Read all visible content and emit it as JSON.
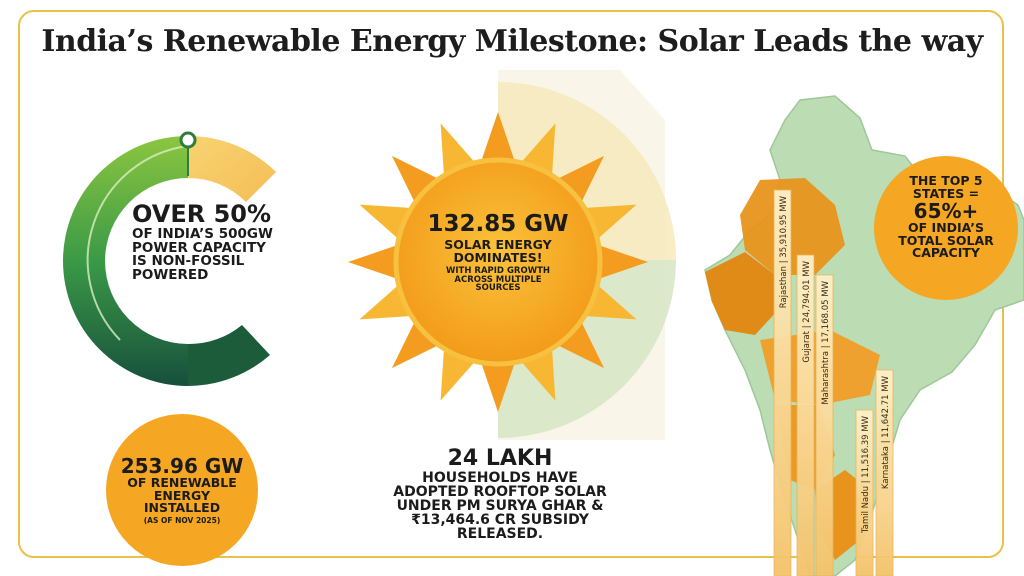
{
  "title": "India’s Renewable Energy Milestone: Solar Leads the way",
  "gauge": {
    "headline": "OVER 50%",
    "line1": "OF INDIA’S 500GW",
    "line2": "POWER CAPACITY",
    "line3": "IS NON-FOSSIL",
    "line4": "POWERED",
    "fraction": 0.5
  },
  "sun": {
    "headline": "132.85 GW",
    "line1": "SOLAR ENERGY",
    "line2": "DOMINATES!",
    "line3": "WITH RAPID GROWTH",
    "line4": "ACROSS MULTIPLE",
    "line5": "SOURCES"
  },
  "renewable": {
    "headline": "253.96 GW",
    "line1": "OF RENEWABLE",
    "line2": "ENERGY",
    "line3": "INSTALLED",
    "note": "(AS OF NOV 2025)"
  },
  "rooftop": {
    "headline": "24 LAKH",
    "line1": "HOUSEHOLDS HAVE",
    "line2": "ADOPTED ROOFTOP SOLAR",
    "line3": "UNDER PM SURYA GHAR &",
    "line4": "₹13,464.6 CR SUBSIDY",
    "line5": "RELEASED."
  },
  "top_states": {
    "line1": "THE TOP 5",
    "line2": "STATES =",
    "headline": "65%+",
    "line3": "OF INDIA’S",
    "line4": "TOTAL SOLAR",
    "line5": "CAPACITY"
  },
  "states": [
    {
      "label": "Rajasthan | 35,910.95 MW",
      "value": 35910.95
    },
    {
      "label": "Gujarat | 24,794.01 MW",
      "value": 24794.01
    },
    {
      "label": "Maharashtra | 17,168.05 MW",
      "value": 17168.05
    },
    {
      "label": "Tamil Nadu | 11,516.39 MW",
      "value": 11516.39
    },
    {
      "label": "Karnataka | 11,642.71 MW",
      "value": 11642.71
    }
  ],
  "colors": {
    "gauge_dark": "#1d6b3a",
    "gauge_light": "#8cc63f",
    "gauge_warm": "#f4c74a",
    "sun": "#f6a623",
    "sun_rays": "#f7b733",
    "map_land": "#b8ddb0",
    "map_highlight": "#e8931c",
    "badge": "#f5a623",
    "text": "#1b1b1b"
  }
}
